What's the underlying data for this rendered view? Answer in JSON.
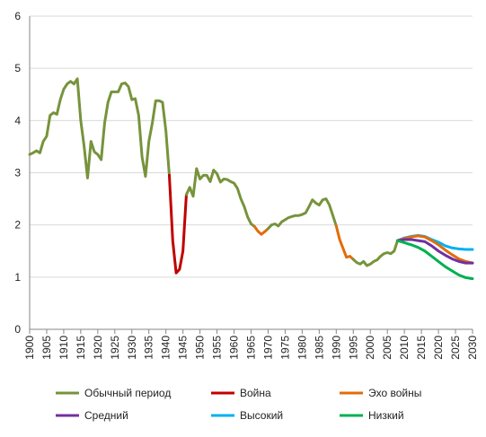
{
  "chart_data": {
    "type": "line",
    "xlim": [
      1900,
      2030
    ],
    "ylim": [
      0,
      6
    ],
    "x_ticks": [
      "1900",
      "1905",
      "1910",
      "1915",
      "1920",
      "1925",
      "1930",
      "1935",
      "1940",
      "1945",
      "1950",
      "1955",
      "1960",
      "1965",
      "1970",
      "1975",
      "1980",
      "1985",
      "1990",
      "1995",
      "2000",
      "2005",
      "2010",
      "2015",
      "2020",
      "2025",
      "2030"
    ],
    "y_ticks": [
      "0",
      "1",
      "2",
      "3",
      "4",
      "5",
      "6"
    ],
    "grid": "horizontal",
    "legend_position": "bottom",
    "series": [
      {
        "name": "Обычный период",
        "color": "#77933C",
        "points": [
          [
            1900,
            3.35
          ],
          [
            1901,
            3.38
          ],
          [
            1902,
            3.42
          ],
          [
            1903,
            3.38
          ],
          [
            1904,
            3.6
          ],
          [
            1905,
            3.7
          ],
          [
            1906,
            4.1
          ],
          [
            1907,
            4.15
          ],
          [
            1908,
            4.12
          ],
          [
            1909,
            4.4
          ],
          [
            1910,
            4.6
          ],
          [
            1911,
            4.7
          ],
          [
            1912,
            4.75
          ],
          [
            1913,
            4.7
          ],
          [
            1914,
            4.8
          ],
          [
            1915,
            4.0
          ],
          [
            1916,
            3.5
          ],
          [
            1917,
            2.9
          ],
          [
            1918,
            3.6
          ],
          [
            1919,
            3.4
          ],
          [
            1920,
            3.35
          ],
          [
            1921,
            3.25
          ],
          [
            1922,
            3.95
          ],
          [
            1923,
            4.35
          ],
          [
            1924,
            4.55
          ],
          [
            1925,
            4.55
          ],
          [
            1926,
            4.55
          ],
          [
            1927,
            4.7
          ],
          [
            1928,
            4.72
          ],
          [
            1929,
            4.65
          ],
          [
            1930,
            4.4
          ],
          [
            1931,
            4.42
          ],
          [
            1932,
            4.1
          ],
          [
            1933,
            3.3
          ],
          [
            1934,
            2.93
          ],
          [
            1935,
            3.6
          ],
          [
            1936,
            3.95
          ],
          [
            1937,
            4.38
          ],
          [
            1938,
            4.38
          ],
          [
            1939,
            4.35
          ],
          [
            1940,
            3.8
          ],
          [
            1941,
            2.95
          ]
        ]
      },
      {
        "name": "Война",
        "color": "#C00000",
        "points": [
          [
            1941,
            2.95
          ],
          [
            1942,
            1.7
          ],
          [
            1943,
            1.08
          ],
          [
            1944,
            1.15
          ],
          [
            1945,
            1.5
          ],
          [
            1946,
            2.58
          ]
        ]
      },
      {
        "name": "Обычный период",
        "color": "#77933C",
        "points": [
          [
            1946,
            2.58
          ],
          [
            1947,
            2.72
          ],
          [
            1948,
            2.55
          ],
          [
            1949,
            3.08
          ],
          [
            1950,
            2.88
          ],
          [
            1951,
            2.95
          ],
          [
            1952,
            2.95
          ],
          [
            1953,
            2.83
          ],
          [
            1954,
            3.05
          ],
          [
            1955,
            2.98
          ],
          [
            1956,
            2.82
          ],
          [
            1957,
            2.88
          ],
          [
            1958,
            2.87
          ],
          [
            1959,
            2.83
          ],
          [
            1960,
            2.8
          ],
          [
            1961,
            2.7
          ],
          [
            1962,
            2.5
          ],
          [
            1963,
            2.35
          ],
          [
            1964,
            2.15
          ],
          [
            1965,
            2.02
          ],
          [
            1966,
            1.97
          ]
        ]
      },
      {
        "name": "Эхо войны",
        "color": "#E36C09",
        "points": [
          [
            1966,
            1.97
          ],
          [
            1967,
            1.88
          ],
          [
            1968,
            1.82
          ],
          [
            1969,
            1.87
          ],
          [
            1970,
            1.93
          ]
        ]
      },
      {
        "name": "Обычный период",
        "color": "#77933C",
        "points": [
          [
            1970,
            1.93
          ],
          [
            1971,
            2.0
          ],
          [
            1972,
            2.02
          ],
          [
            1973,
            1.98
          ],
          [
            1974,
            2.06
          ],
          [
            1975,
            2.1
          ],
          [
            1976,
            2.14
          ],
          [
            1977,
            2.16
          ],
          [
            1978,
            2.18
          ],
          [
            1979,
            2.18
          ],
          [
            1980,
            2.2
          ],
          [
            1981,
            2.23
          ],
          [
            1982,
            2.35
          ],
          [
            1983,
            2.48
          ],
          [
            1984,
            2.42
          ],
          [
            1985,
            2.38
          ],
          [
            1986,
            2.48
          ],
          [
            1987,
            2.5
          ],
          [
            1988,
            2.38
          ],
          [
            1989,
            2.18
          ],
          [
            1990,
            1.98
          ]
        ]
      },
      {
        "name": "Эхо войны",
        "color": "#E36C09",
        "points": [
          [
            1990,
            1.98
          ],
          [
            1991,
            1.72
          ],
          [
            1992,
            1.55
          ],
          [
            1993,
            1.38
          ],
          [
            1994,
            1.4
          ],
          [
            1995,
            1.34
          ]
        ]
      },
      {
        "name": "Обычный период",
        "color": "#77933C",
        "points": [
          [
            1995,
            1.34
          ],
          [
            1996,
            1.28
          ],
          [
            1997,
            1.25
          ],
          [
            1998,
            1.3
          ],
          [
            1999,
            1.22
          ],
          [
            2000,
            1.25
          ],
          [
            2001,
            1.3
          ],
          [
            2002,
            1.33
          ],
          [
            2003,
            1.4
          ],
          [
            2004,
            1.45
          ],
          [
            2005,
            1.47
          ],
          [
            2006,
            1.45
          ],
          [
            2007,
            1.5
          ],
          [
            2008,
            1.7
          ]
        ]
      },
      {
        "name": "Высокий",
        "color": "#00B0F0",
        "points": [
          [
            2008,
            1.7
          ],
          [
            2010,
            1.75
          ],
          [
            2012,
            1.78
          ],
          [
            2014,
            1.8
          ],
          [
            2016,
            1.78
          ],
          [
            2018,
            1.72
          ],
          [
            2020,
            1.67
          ],
          [
            2022,
            1.6
          ],
          [
            2024,
            1.56
          ],
          [
            2026,
            1.54
          ],
          [
            2028,
            1.53
          ],
          [
            2030,
            1.53
          ]
        ]
      },
      {
        "name": "Эхо войны",
        "color": "#E36C09",
        "points": [
          [
            2008,
            1.7
          ],
          [
            2010,
            1.74
          ],
          [
            2012,
            1.77
          ],
          [
            2014,
            1.79
          ],
          [
            2016,
            1.77
          ],
          [
            2018,
            1.7
          ],
          [
            2020,
            1.62
          ],
          [
            2022,
            1.52
          ],
          [
            2024,
            1.43
          ],
          [
            2026,
            1.35
          ],
          [
            2028,
            1.3
          ],
          [
            2030,
            1.27
          ]
        ]
      },
      {
        "name": "Средний",
        "color": "#7030A0",
        "points": [
          [
            2008,
            1.7
          ],
          [
            2010,
            1.72
          ],
          [
            2012,
            1.72
          ],
          [
            2014,
            1.7
          ],
          [
            2016,
            1.68
          ],
          [
            2018,
            1.6
          ],
          [
            2020,
            1.5
          ],
          [
            2022,
            1.42
          ],
          [
            2024,
            1.35
          ],
          [
            2026,
            1.3
          ],
          [
            2028,
            1.27
          ],
          [
            2030,
            1.27
          ]
        ]
      },
      {
        "name": "Низкий",
        "color": "#00B050",
        "points": [
          [
            2008,
            1.7
          ],
          [
            2010,
            1.66
          ],
          [
            2012,
            1.62
          ],
          [
            2014,
            1.57
          ],
          [
            2016,
            1.5
          ],
          [
            2018,
            1.4
          ],
          [
            2020,
            1.3
          ],
          [
            2022,
            1.2
          ],
          [
            2024,
            1.12
          ],
          [
            2026,
            1.04
          ],
          [
            2028,
            0.99
          ],
          [
            2030,
            0.97
          ]
        ]
      }
    ],
    "legend": [
      {
        "label": "Обычный период",
        "color": "#77933C"
      },
      {
        "label": "Война",
        "color": "#C00000"
      },
      {
        "label": "Эхо войны",
        "color": "#E36C09"
      },
      {
        "label": "Средний",
        "color": "#7030A0"
      },
      {
        "label": "Высокий",
        "color": "#00B0F0"
      },
      {
        "label": "Низкий",
        "color": "#00B050"
      }
    ]
  }
}
